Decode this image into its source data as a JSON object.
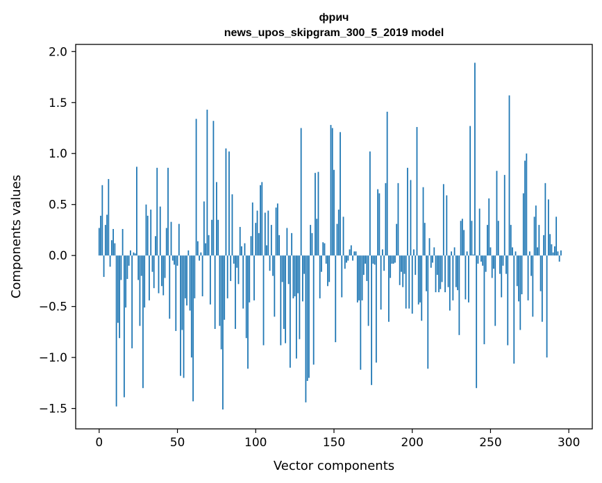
{
  "chart_data": {
    "type": "bar",
    "title_line1": "фрич",
    "title_line2": "news_upos_skipgram_300_5_2019 model",
    "xlabel": "Vector components",
    "ylabel": "Components values",
    "xlim": [
      -15,
      315
    ],
    "ylim": [
      -1.7,
      2.07
    ],
    "x_ticks": [
      0,
      50,
      100,
      150,
      200,
      250,
      300
    ],
    "y_ticks": [
      -1.5,
      -1.0,
      -0.5,
      0.0,
      0.5,
      1.0,
      1.5,
      2.0
    ],
    "y_tick_labels": [
      "−1.5",
      "−1.0",
      "−0.5",
      "0.0",
      "0.5",
      "1.0",
      "1.5",
      "2.0"
    ],
    "bar_color": "#1f77b4",
    "series": [
      {
        "name": "фрич",
        "values": [
          0.27,
          0.39,
          0.69,
          -0.21,
          0.3,
          0.4,
          0.75,
          -0.11,
          0.15,
          0.26,
          0.12,
          -1.48,
          -0.66,
          -0.81,
          -0.24,
          0.26,
          -1.39,
          -0.51,
          -0.23,
          -0.1,
          0.05,
          -0.91,
          0.03,
          0.02,
          0.87,
          -0.24,
          -0.69,
          -0.2,
          -1.3,
          -0.51,
          0.5,
          0.39,
          -0.44,
          0.45,
          -0.16,
          -0.32,
          0.19,
          0.86,
          -0.37,
          0.48,
          -0.3,
          -0.39,
          -0.22,
          0.27,
          0.86,
          -0.62,
          0.33,
          -0.05,
          -0.09,
          -0.74,
          -0.1,
          0.31,
          -1.18,
          -0.73,
          -1.2,
          -0.42,
          -0.49,
          0.05,
          -0.54,
          -1.0,
          -1.43,
          -0.42,
          1.34,
          0.14,
          -0.05,
          0.03,
          -0.4,
          0.53,
          0.12,
          1.43,
          0.2,
          -0.48,
          0.35,
          1.32,
          -0.72,
          0.72,
          0.35,
          -0.69,
          -0.92,
          -1.51,
          -0.63,
          1.05,
          -0.42,
          1.02,
          -0.25,
          0.6,
          -0.08,
          -0.72,
          -0.12,
          -0.28,
          0.28,
          0.09,
          -0.52,
          0.12,
          -0.81,
          -1.11,
          -0.46,
          0.19,
          0.52,
          -0.44,
          0.32,
          0.44,
          0.22,
          0.69,
          0.72,
          -0.88,
          0.42,
          0.1,
          0.44,
          -0.15,
          0.3,
          -0.2,
          -0.6,
          0.47,
          0.51,
          0.2,
          -0.88,
          -0.26,
          -0.72,
          -0.86,
          0.27,
          -0.28,
          -1.1,
          0.22,
          -0.42,
          -0.4,
          -1.01,
          -0.37,
          -0.82,
          1.25,
          -0.45,
          -0.18,
          -1.44,
          -1.23,
          -1.2,
          0.3,
          0.22,
          -1.07,
          0.81,
          0.36,
          0.82,
          -0.42,
          -0.16,
          0.13,
          0.12,
          -0.08,
          -0.3,
          -0.26,
          1.28,
          1.25,
          0.84,
          -0.85,
          0.31,
          0.45,
          1.21,
          -0.41,
          0.38,
          -0.13,
          -0.07,
          -0.05,
          0.06,
          0.1,
          -0.05,
          0.04,
          0.04,
          -0.46,
          -0.44,
          -1.12,
          -0.44,
          -0.19,
          -0.08,
          -0.25,
          -0.69,
          1.02,
          -1.27,
          -0.08,
          -0.09,
          -1.05,
          0.65,
          0.61,
          -0.53,
          0.06,
          -0.15,
          0.71,
          1.41,
          -0.65,
          -0.22,
          -0.08,
          -0.08,
          -0.07,
          0.31,
          0.71,
          -0.29,
          -0.16,
          -0.31,
          -0.18,
          -0.52,
          0.86,
          -0.52,
          0.74,
          -0.57,
          0.06,
          -0.19,
          1.26,
          -0.48,
          -0.46,
          -0.64,
          0.67,
          0.32,
          -0.35,
          -1.11,
          0.17,
          -0.12,
          -0.07,
          0.08,
          -0.36,
          -0.19,
          -0.36,
          -0.33,
          -0.26,
          0.7,
          -0.36,
          0.59,
          -0.31,
          -0.54,
          0.04,
          -0.44,
          0.08,
          -0.31,
          -0.34,
          -0.78,
          0.34,
          0.36,
          0.25,
          -0.43,
          0.04,
          -0.46,
          1.27,
          0.34,
          0.01,
          1.89,
          -1.3,
          -0.08,
          0.46,
          -0.06,
          -0.1,
          -0.87,
          -0.16,
          0.3,
          0.56,
          0.08,
          -0.22,
          -0.13,
          -0.69,
          0.83,
          0.34,
          -0.18,
          -0.41,
          -0.1,
          0.79,
          -0.18,
          -0.88,
          1.57,
          0.3,
          0.08,
          -1.06,
          0.04,
          -0.3,
          -0.45,
          -0.73,
          -0.38,
          0.61,
          0.93,
          1.0,
          -0.44,
          0.04,
          -0.2,
          -0.6,
          0.38,
          0.49,
          0.08,
          0.3,
          -0.35,
          -0.65,
          0.2,
          0.71,
          -1.0,
          0.55,
          0.21,
          0.11,
          0.03,
          0.09,
          0.38,
          0.04,
          -0.06,
          0.05
        ]
      }
    ]
  }
}
